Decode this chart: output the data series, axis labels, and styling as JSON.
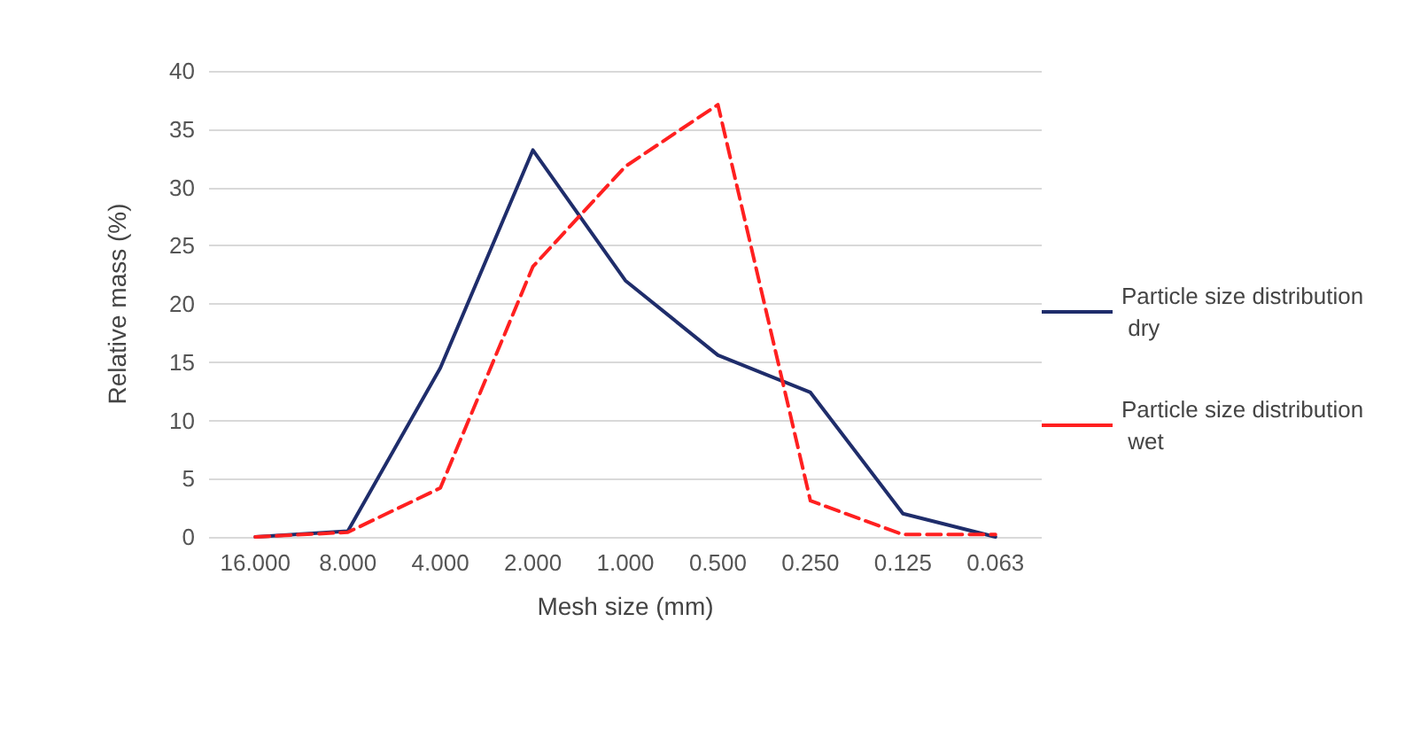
{
  "chart_data": {
    "type": "line",
    "xlabel": "Mesh size (mm)",
    "ylabel": "Relative mass (%)",
    "categories": [
      "16.000",
      "8.000",
      "4.000",
      "2.000",
      "1.000",
      "0.500",
      "0.250",
      "0.125",
      "0.063"
    ],
    "series": [
      {
        "name": "Particle size distribution dry",
        "color": "#1f2d6b",
        "line_style": "solid",
        "values": [
          0,
          0.5,
          14.5,
          33.2,
          22,
          15.6,
          12.4,
          2,
          0
        ]
      },
      {
        "name": "Particle size distribution wet",
        "color": "#ff2020",
        "line_style": "dashed",
        "values": [
          0,
          0.4,
          4.2,
          23.2,
          31.8,
          37.1,
          3.1,
          0.2,
          0.2
        ]
      }
    ],
    "ylim": [
      0,
      40
    ],
    "yticks": [
      0,
      5,
      10,
      15,
      20,
      25,
      30,
      35,
      40
    ],
    "grid": "y",
    "legend": "right",
    "marker": "none"
  }
}
